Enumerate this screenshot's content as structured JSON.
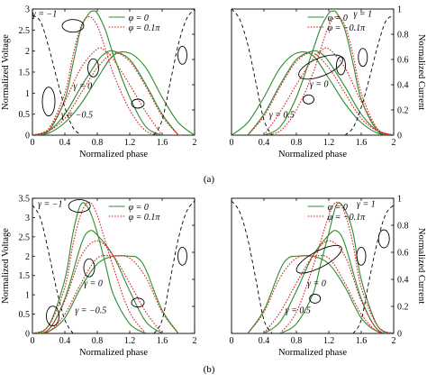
{
  "figure": {
    "panel_labels": [
      "(a)",
      "(b)"
    ]
  },
  "chart_data": [
    {
      "type": "line",
      "panel": "a-left",
      "xlabel": "Normalized phase",
      "ylabel": "Normalized Voltage",
      "y2label": "",
      "xlim": [
        0,
        2
      ],
      "ylim": [
        0,
        3
      ],
      "y2lim": [
        0,
        1
      ],
      "xticks": [
        "0",
        "0.4",
        "0.8",
        "1.2",
        "1.6",
        "2"
      ],
      "yticks": [
        "0",
        "0.5",
        "1",
        "1.5",
        "2",
        "2.5",
        "3"
      ],
      "y2ticks": [],
      "legend": [
        {
          "label": "φ = 0",
          "color": "#2e8b2e",
          "dash": "solid"
        },
        {
          "label": "φ = 0.1π",
          "color": "#d62020",
          "dash": "dotted"
        }
      ],
      "annotations": [
        "γ = −1",
        "γ = 0",
        "γ = −0.5"
      ],
      "series": [
        {
          "group": "phi0",
          "color": "#2e8b2e",
          "dash": "solid",
          "x": [
            0.0,
            0.2,
            0.4,
            0.5,
            0.6,
            0.7,
            0.75,
            0.8,
            0.9,
            1.0,
            1.2,
            1.4,
            1.6
          ],
          "y": [
            0,
            0.1,
            0.85,
            1.7,
            2.55,
            2.9,
            2.95,
            2.9,
            2.5,
            1.9,
            0.9,
            0.2,
            0
          ]
        },
        {
          "group": "phi0",
          "color": "#2e8b2e",
          "dash": "solid",
          "x": [
            0.0,
            0.2,
            0.4,
            0.6,
            0.8,
            0.9,
            1.0,
            1.2,
            1.4,
            1.6,
            1.8
          ],
          "y": [
            0,
            0.1,
            0.5,
            1.15,
            1.75,
            1.95,
            2.0,
            1.8,
            1.2,
            0.5,
            0
          ]
        },
        {
          "group": "phi0",
          "color": "#2e8b2e",
          "dash": "solid",
          "x": [
            0.0,
            0.2,
            0.4,
            0.6,
            0.8,
            1.0,
            1.2,
            1.4,
            1.6,
            1.8,
            2.0
          ],
          "y": [
            0,
            0.05,
            0.3,
            0.75,
            1.35,
            1.9,
            1.95,
            1.6,
            0.9,
            0.3,
            0
          ]
        },
        {
          "group": "phi01",
          "color": "#d62020",
          "dash": "dotted",
          "x": [
            0.0,
            0.2,
            0.4,
            0.5,
            0.6,
            0.7,
            0.8,
            0.9,
            1.0,
            1.2,
            1.4,
            1.6
          ],
          "y": [
            0,
            0.15,
            1.0,
            1.9,
            2.6,
            2.82,
            2.6,
            2.05,
            1.45,
            0.6,
            0.1,
            0
          ]
        },
        {
          "group": "phi01",
          "color": "#d62020",
          "dash": "dotted",
          "x": [
            0.0,
            0.2,
            0.4,
            0.6,
            0.8,
            0.9,
            1.0,
            1.2,
            1.4,
            1.6
          ],
          "y": [
            0,
            0.15,
            0.8,
            1.6,
            2.05,
            2.0,
            1.8,
            1.2,
            0.55,
            0
          ]
        },
        {
          "group": "phi01",
          "color": "#d62020",
          "dash": "dotted",
          "x": [
            0.0,
            0.2,
            0.4,
            0.6,
            0.8,
            1.0,
            1.2,
            1.4,
            1.6,
            1.8
          ],
          "y": [
            0,
            0.1,
            0.4,
            1.0,
            1.6,
            1.95,
            1.75,
            1.15,
            0.45,
            0
          ]
        },
        {
          "group": "current",
          "color": "#000000",
          "dash": "dashed",
          "axis": "right",
          "x": [
            0.0,
            0.1,
            0.2,
            0.3,
            0.4,
            0.5,
            0.6
          ],
          "y": [
            0.95,
            0.9,
            0.7,
            0.45,
            0.22,
            0.06,
            0
          ]
        },
        {
          "group": "current",
          "color": "#000000",
          "dash": "dashed",
          "axis": "right",
          "x": [
            1.5,
            1.6,
            1.7,
            1.8,
            1.9,
            2.0
          ],
          "y": [
            0,
            0.12,
            0.42,
            0.72,
            0.92,
            1.0
          ]
        }
      ]
    },
    {
      "type": "line",
      "panel": "a-right",
      "xlabel": "Normalized phase",
      "ylabel": "",
      "y2label": "Normalized Current",
      "xlim": [
        0,
        2
      ],
      "ylim": [
        0,
        3
      ],
      "y2lim": [
        0,
        1
      ],
      "xticks": [
        "0",
        "0.4",
        "0.8",
        "1.2",
        "1.6",
        "2"
      ],
      "yticks": [],
      "y2ticks": [
        "0",
        "0.2",
        "0.4",
        "0.6",
        "0.8",
        "1"
      ],
      "y2ticks_outer": [
        "0",
        "0.2",
        "0.4",
        "0.6",
        "0.8",
        "1"
      ],
      "legend": [
        {
          "label": "φ = 0",
          "color": "#2e8b2e",
          "dash": "solid"
        },
        {
          "label": "φ = −0.1π",
          "color": "#d62020",
          "dash": "dotted"
        }
      ],
      "annotations": [
        "γ = 1",
        "γ = 0",
        "γ = 0.5"
      ],
      "series": [
        {
          "group": "phi0",
          "color": "#2e8b2e",
          "dash": "solid",
          "x": [
            0.4,
            0.6,
            0.8,
            1.0,
            1.1,
            1.2,
            1.25,
            1.3,
            1.4,
            1.5,
            1.6,
            1.8,
            2.0
          ],
          "y": [
            0,
            0.2,
            0.9,
            2.0,
            2.55,
            2.9,
            2.95,
            2.9,
            2.5,
            1.7,
            0.85,
            0.1,
            0
          ]
        },
        {
          "group": "phi0",
          "color": "#2e8b2e",
          "dash": "solid",
          "x": [
            0.2,
            0.4,
            0.6,
            0.8,
            1.0,
            1.1,
            1.2,
            1.4,
            1.6,
            1.8,
            2.0
          ],
          "y": [
            0,
            0.5,
            1.2,
            1.8,
            2.0,
            1.95,
            1.75,
            1.15,
            0.5,
            0.1,
            0
          ]
        },
        {
          "group": "phi0",
          "color": "#2e8b2e",
          "dash": "solid",
          "x": [
            0.0,
            0.2,
            0.4,
            0.6,
            0.8,
            1.0,
            1.2,
            1.4,
            1.6,
            1.8,
            2.0
          ],
          "y": [
            0,
            0.3,
            0.9,
            1.6,
            1.95,
            1.9,
            1.35,
            0.75,
            0.3,
            0.05,
            0
          ]
        },
        {
          "group": "phi01",
          "color": "#d62020",
          "dash": "dotted",
          "x": [
            0.4,
            0.6,
            0.8,
            1.0,
            1.1,
            1.2,
            1.3,
            1.4,
            1.5,
            1.6,
            1.8,
            2.0
          ],
          "y": [
            0,
            0.1,
            0.6,
            1.45,
            2.05,
            2.6,
            2.82,
            2.6,
            1.9,
            1.0,
            0.15,
            0
          ]
        },
        {
          "group": "phi01",
          "color": "#d62020",
          "dash": "dotted",
          "x": [
            0.4,
            0.6,
            0.8,
            1.0,
            1.1,
            1.2,
            1.4,
            1.6,
            1.8,
            2.0
          ],
          "y": [
            0,
            0.55,
            1.2,
            1.8,
            2.0,
            2.05,
            1.6,
            0.8,
            0.15,
            0
          ]
        },
        {
          "group": "phi01",
          "color": "#d62020",
          "dash": "dotted",
          "x": [
            0.2,
            0.4,
            0.6,
            0.8,
            1.0,
            1.2,
            1.4,
            1.6,
            1.8,
            2.0
          ],
          "y": [
            0,
            0.45,
            1.15,
            1.75,
            1.95,
            1.6,
            1.0,
            0.4,
            0.1,
            0
          ]
        },
        {
          "group": "current",
          "color": "#000000",
          "dash": "dashed",
          "axis": "right",
          "x": [
            0.0,
            0.1,
            0.2,
            0.3,
            0.4,
            0.5
          ],
          "y": [
            1.0,
            0.92,
            0.72,
            0.42,
            0.12,
            0
          ]
        },
        {
          "group": "current",
          "color": "#000000",
          "dash": "dashed",
          "axis": "right",
          "x": [
            1.4,
            1.5,
            1.6,
            1.7,
            1.8,
            1.9,
            2.0
          ],
          "y": [
            0,
            0.06,
            0.22,
            0.45,
            0.7,
            0.9,
            0.95
          ]
        }
      ]
    },
    {
      "type": "line",
      "panel": "b-left",
      "xlabel": "Normalized phase",
      "ylabel": "Normalized Voltage",
      "y2label": "",
      "xlim": [
        0,
        2
      ],
      "ylim": [
        0,
        3.5
      ],
      "y2lim": [
        0,
        1
      ],
      "xticks": [
        "0",
        "0.4",
        "0.8",
        "1.2",
        "1.6",
        "2"
      ],
      "yticks": [
        "0",
        "0.5",
        "1",
        "1.5",
        "2",
        "2.5",
        "3",
        "3.5"
      ],
      "y2ticks": [],
      "legend": [
        {
          "label": "φ = 0",
          "color": "#2e8b2e",
          "dash": "solid"
        },
        {
          "label": "φ = 0.1π",
          "color": "#d62020",
          "dash": "dotted"
        }
      ],
      "annotations": [
        "γ = −1",
        "γ = 0",
        "γ = −0.5"
      ],
      "series": [
        {
          "group": "phi0",
          "color": "#2e8b2e",
          "dash": "solid",
          "x": [
            0.0,
            0.2,
            0.4,
            0.5,
            0.6,
            0.7,
            0.8,
            0.9,
            1.0,
            1.2,
            1.4
          ],
          "y": [
            0,
            0.2,
            1.4,
            2.6,
            3.35,
            3.2,
            2.6,
            1.8,
            1.0,
            0.25,
            0
          ]
        },
        {
          "group": "phi0",
          "color": "#2e8b2e",
          "dash": "solid",
          "x": [
            0.0,
            0.2,
            0.4,
            0.6,
            0.7,
            0.8,
            1.0,
            1.2,
            1.4,
            1.6
          ],
          "y": [
            0,
            0.1,
            0.9,
            2.3,
            2.65,
            2.55,
            2.0,
            1.1,
            0.3,
            0
          ]
        },
        {
          "group": "phi0",
          "color": "#2e8b2e",
          "dash": "solid",
          "x": [
            0.0,
            0.2,
            0.4,
            0.6,
            0.8,
            1.0,
            1.2,
            1.3,
            1.4,
            1.6,
            1.8
          ],
          "y": [
            0,
            0.05,
            0.4,
            1.2,
            1.8,
            2.0,
            2.0,
            1.95,
            1.65,
            0.6,
            0
          ]
        },
        {
          "group": "phi01",
          "color": "#d62020",
          "dash": "dotted",
          "x": [
            0.0,
            0.2,
            0.4,
            0.5,
            0.6,
            0.7,
            0.8,
            1.0,
            1.2,
            1.4
          ],
          "y": [
            0,
            0.2,
            1.2,
            2.3,
            3.1,
            3.4,
            3.05,
            1.7,
            0.55,
            0
          ]
        },
        {
          "group": "phi01",
          "color": "#d62020",
          "dash": "dotted",
          "x": [
            0.0,
            0.2,
            0.4,
            0.6,
            0.8,
            1.0,
            1.2,
            1.4,
            1.6
          ],
          "y": [
            0,
            0.1,
            0.85,
            2.0,
            2.4,
            2.0,
            1.3,
            0.55,
            0
          ]
        },
        {
          "group": "phi01",
          "color": "#d62020",
          "dash": "dotted",
          "x": [
            0.0,
            0.2,
            0.4,
            0.6,
            0.8,
            1.0,
            1.2,
            1.4,
            1.6,
            1.8
          ],
          "y": [
            0,
            0.05,
            0.5,
            1.3,
            1.95,
            2.0,
            1.95,
            1.45,
            0.55,
            0
          ]
        },
        {
          "group": "current",
          "color": "#000000",
          "dash": "dashed",
          "axis": "right",
          "x": [
            0.0,
            0.1,
            0.2,
            0.3,
            0.4,
            0.5
          ],
          "y": [
            0.95,
            0.85,
            0.6,
            0.32,
            0.1,
            0
          ]
        },
        {
          "group": "current",
          "color": "#000000",
          "dash": "dashed",
          "axis": "right",
          "x": [
            1.5,
            1.6,
            1.7,
            1.8,
            1.9,
            2.0
          ],
          "y": [
            0,
            0.1,
            0.4,
            0.7,
            0.9,
            0.98
          ]
        }
      ]
    },
    {
      "type": "line",
      "panel": "b-right",
      "xlabel": "Normalized phase",
      "ylabel": "",
      "y2label": "Normalized Current",
      "xlim": [
        0,
        2
      ],
      "ylim": [
        0,
        3.5
      ],
      "y2lim": [
        0,
        1
      ],
      "xticks": [
        "0",
        "0.4",
        "0.8",
        "1.2",
        "1.6",
        "2"
      ],
      "yticks": [],
      "y2ticks": [
        "0",
        "0.2",
        "0.4",
        "0.6",
        "0.8",
        "1"
      ],
      "legend": [
        {
          "label": "φ = 0",
          "color": "#2e8b2e",
          "dash": "solid"
        },
        {
          "label": "φ = −0.1π",
          "color": "#d62020",
          "dash": "dotted"
        }
      ],
      "annotations": [
        "γ = 1",
        "γ = 0",
        "γ = 0.5"
      ],
      "series": [
        {
          "group": "phi0",
          "color": "#2e8b2e",
          "dash": "solid",
          "x": [
            0.6,
            0.8,
            1.0,
            1.1,
            1.2,
            1.3,
            1.4,
            1.5,
            1.6,
            1.8,
            2.0
          ],
          "y": [
            0,
            0.25,
            1.0,
            1.8,
            2.6,
            3.35,
            3.2,
            2.6,
            1.4,
            0.2,
            0
          ]
        },
        {
          "group": "phi0",
          "color": "#2e8b2e",
          "dash": "solid",
          "x": [
            0.4,
            0.6,
            0.8,
            1.0,
            1.2,
            1.3,
            1.4,
            1.6,
            1.8,
            2.0
          ],
          "y": [
            0,
            0.3,
            1.1,
            2.0,
            2.55,
            2.65,
            2.3,
            0.9,
            0.1,
            0
          ]
        },
        {
          "group": "phi0",
          "color": "#2e8b2e",
          "dash": "solid",
          "x": [
            0.2,
            0.4,
            0.6,
            0.7,
            0.8,
            1.0,
            1.2,
            1.4,
            1.6,
            1.8,
            2.0
          ],
          "y": [
            0,
            0.6,
            1.65,
            1.95,
            2.0,
            2.0,
            1.8,
            1.2,
            0.4,
            0.05,
            0
          ]
        },
        {
          "group": "phi01",
          "color": "#d62020",
          "dash": "dotted",
          "x": [
            0.6,
            0.8,
            1.0,
            1.2,
            1.3,
            1.4,
            1.5,
            1.6,
            1.8,
            2.0
          ],
          "y": [
            0,
            0.55,
            1.7,
            3.05,
            3.4,
            3.1,
            2.3,
            1.2,
            0.2,
            0
          ]
        },
        {
          "group": "phi01",
          "color": "#d62020",
          "dash": "dotted",
          "x": [
            0.4,
            0.6,
            0.8,
            1.0,
            1.2,
            1.4,
            1.6,
            1.8,
            2.0
          ],
          "y": [
            0,
            0.55,
            1.3,
            2.0,
            2.4,
            2.0,
            0.85,
            0.1,
            0
          ]
        },
        {
          "group": "phi01",
          "color": "#d62020",
          "dash": "dotted",
          "x": [
            0.2,
            0.4,
            0.6,
            0.8,
            1.0,
            1.2,
            1.4,
            1.6,
            1.8,
            2.0
          ],
          "y": [
            0,
            0.55,
            1.45,
            1.95,
            2.0,
            1.95,
            1.3,
            0.5,
            0.05,
            0
          ]
        },
        {
          "group": "current",
          "color": "#000000",
          "dash": "dashed",
          "axis": "right",
          "x": [
            0.0,
            0.1,
            0.2,
            0.3,
            0.4,
            0.5
          ],
          "y": [
            0.98,
            0.9,
            0.7,
            0.4,
            0.1,
            0
          ]
        },
        {
          "group": "current",
          "color": "#000000",
          "dash": "dashed",
          "axis": "right",
          "x": [
            1.5,
            1.6,
            1.7,
            1.8,
            1.9,
            2.0
          ],
          "y": [
            0,
            0.1,
            0.4,
            0.68,
            0.88,
            0.95
          ]
        }
      ]
    }
  ]
}
